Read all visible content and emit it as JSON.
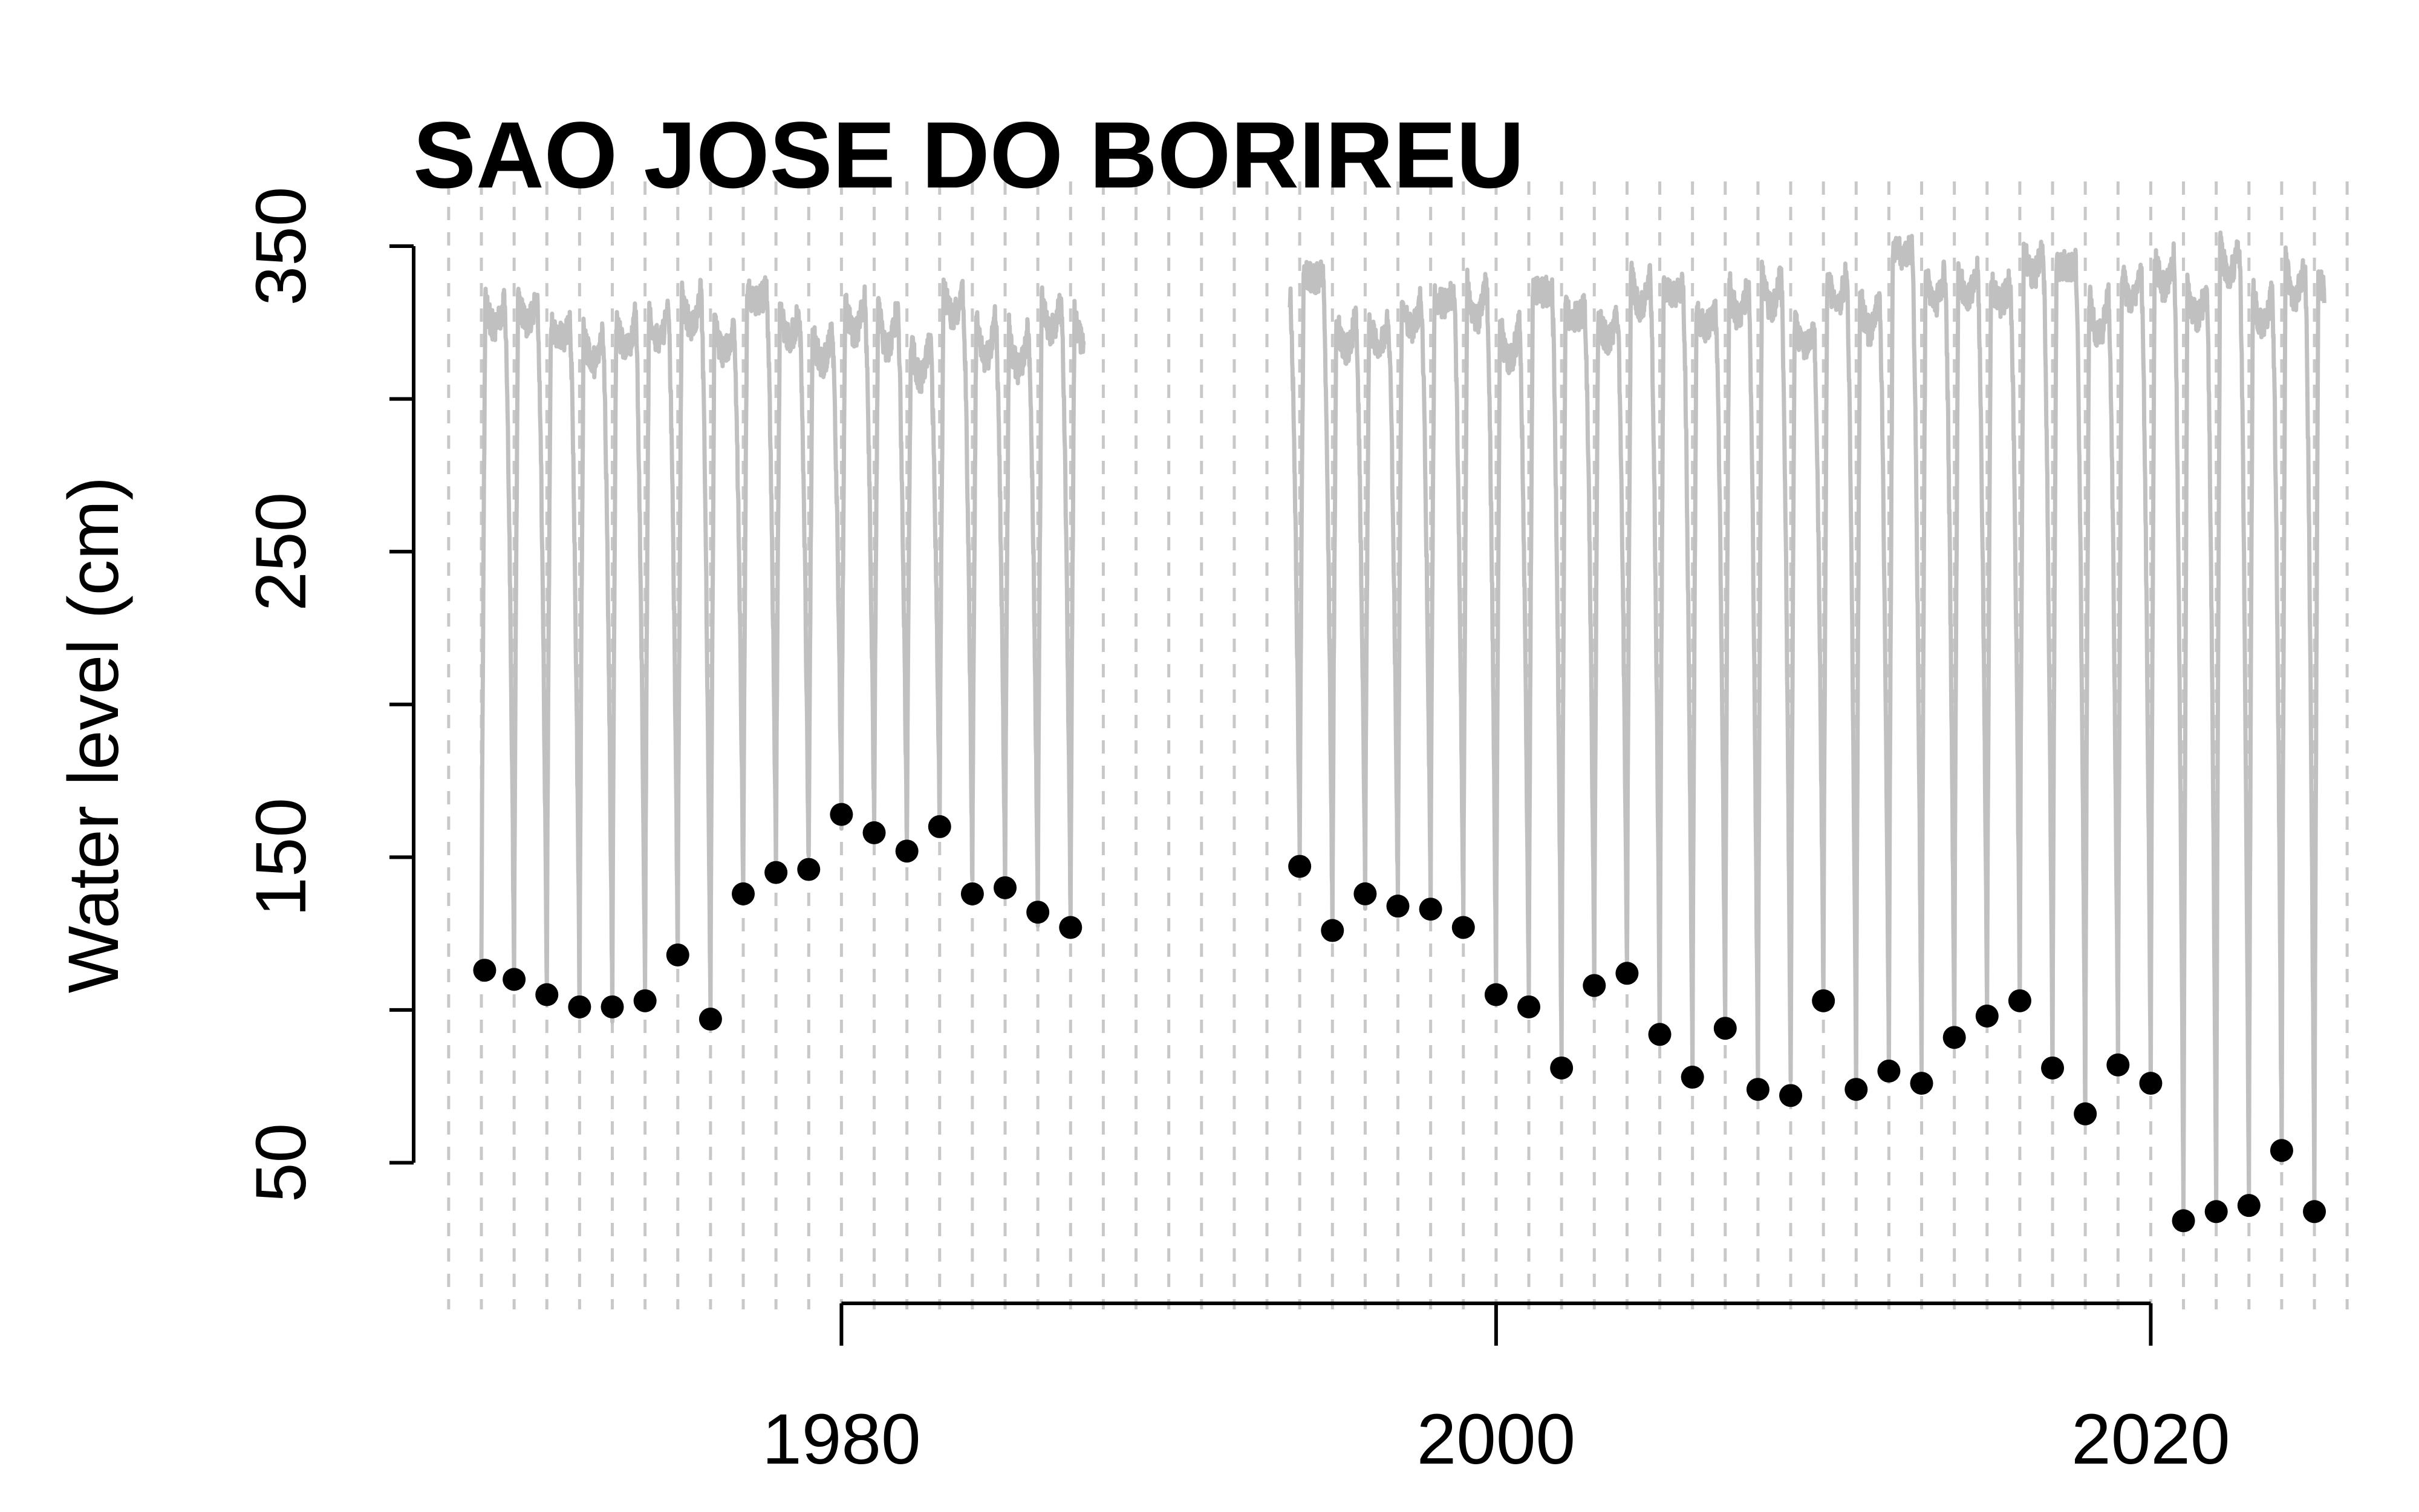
{
  "chart_data": {
    "type": "scatter",
    "title": "SAO JOSE DO BORIREU",
    "xlabel": "",
    "ylabel": "Water level (cm)",
    "xlim": [
      1967.3,
      1972.0
    ],
    "x_range": [
      1967.3,
      2026.2
    ],
    "ylim": [
      20,
      370
    ],
    "x_ticks": [
      1980,
      2000,
      2020
    ],
    "y_ticks": [
      50,
      150,
      250,
      350
    ],
    "grid": "vertical dashed lines at each year",
    "colors": {
      "series_line": "#c0c0c0",
      "minima_points": "#000000",
      "grid": "#c8c8c8",
      "axis": "#000000"
    },
    "series": [
      {
        "name": "",
        "kind": "line",
        "description_segments": [
          [
            1969.0,
            1987.4
          ],
          [
            1993.7,
            2025.3
          ]
        ]
      },
      {
        "name": "",
        "kind": "points",
        "x": [
          1969.1,
          1970.0,
          1971.0,
          1972.0,
          1973.0,
          1974.0,
          1975.0,
          1976.0,
          1977.0,
          1978.0,
          1979.0,
          1980.0,
          1981.0,
          1982.0,
          1983.0,
          1984.0,
          1985.0,
          1986.0,
          1987.0,
          1994.0,
          1995.0,
          1996.0,
          1997.0,
          1998.0,
          1999.0,
          2000.0,
          2001.0,
          2002.0,
          2003.0,
          2004.0,
          2005.0,
          2006.0,
          2007.0,
          2008.0,
          2009.0,
          2010.0,
          2011.0,
          2012.0,
          2013.0,
          2014.0,
          2015.0,
          2016.0,
          2017.0,
          2018.0,
          2019.0,
          2020.0,
          2021.0,
          2022.0,
          2023.0,
          2024.0,
          2025.0
        ],
        "y": [
          113,
          110,
          105,
          101,
          101,
          103,
          118,
          97,
          138,
          145,
          146,
          164,
          158,
          152,
          160,
          138,
          140,
          132,
          127,
          147,
          126,
          138,
          134,
          133,
          127,
          105,
          101,
          81,
          108,
          112,
          92,
          78,
          94,
          74,
          72,
          103,
          74,
          80,
          76,
          91,
          98,
          103,
          81,
          66,
          82,
          76,
          31,
          34,
          36,
          54,
          34
        ]
      }
    ]
  }
}
